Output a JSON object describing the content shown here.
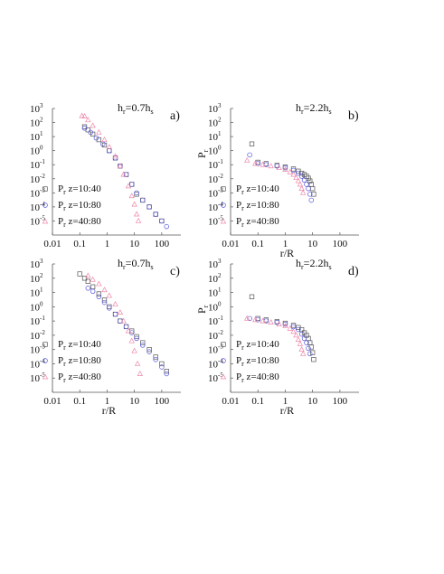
{
  "figure": {
    "panels": [
      {
        "id": "a",
        "title": "h_r=0.7h_s",
        "title_main": "h",
        "title_sub1": "r",
        "title_mid": "=0.7h",
        "title_sub2": "s",
        "letter": "a)",
        "ylabel_main": "",
        "ylabel_sub": "",
        "xlabel": ""
      },
      {
        "id": "b",
        "title": "h_r=2.2h_s",
        "title_main": "h",
        "title_sub1": "r",
        "title_mid": "=2.2h",
        "title_sub2": "s",
        "letter": "b)",
        "ylabel_main": "P",
        "ylabel_sub": "r",
        "xlabel": "r/R"
      },
      {
        "id": "c",
        "title": "h_r=0.7h_s",
        "title_main": "h",
        "title_sub1": "r",
        "title_mid": "=0.7h",
        "title_sub2": "s",
        "letter": "c)",
        "ylabel_main": "",
        "ylabel_sub": "",
        "xlabel": "r/R"
      },
      {
        "id": "d",
        "title": "h_r=2.2h_s",
        "title_main": "h",
        "title_sub1": "r",
        "title_mid": "=2.2h",
        "title_sub2": "s",
        "letter": "d)",
        "ylabel_main": "P",
        "ylabel_sub": "r",
        "xlabel": "r/R"
      }
    ]
  },
  "chart_data": [
    {
      "type": "scatter",
      "panel": "a",
      "title": "h_r=0.7h_s",
      "xlabel": "",
      "ylabel": "",
      "xscale": "log",
      "yscale": "log",
      "xlim": [
        0.01,
        500
      ],
      "ylim": [
        1e-06,
        1000
      ],
      "x_ticks": [
        "0.01",
        "0.1",
        "1",
        "10",
        "100"
      ],
      "y_ticks": [
        {
          "base": "10",
          "exp": "3"
        },
        {
          "base": "10",
          "exp": "2"
        },
        {
          "base": "10",
          "exp": "1"
        },
        {
          "base": "10",
          "exp": "0"
        },
        {
          "base": "10",
          "exp": "-1"
        },
        {
          "base": "10",
          "exp": "-2"
        },
        {
          "base": "10",
          "exp": "-3"
        },
        {
          "base": "10",
          "exp": "-4"
        },
        {
          "base": "10",
          "exp": "-5"
        }
      ],
      "legend_position": "lower-left",
      "series": [
        {
          "name": "P_r z=10:40",
          "label_main": "P",
          "label_sub": "r",
          "label_rest": " z=10:40",
          "marker": "square",
          "color": "#555555",
          "points": [
            [
              0.15,
              50
            ],
            [
              0.2,
              30
            ],
            [
              0.3,
              15
            ],
            [
              0.5,
              6
            ],
            [
              0.8,
              2.5
            ],
            [
              1.2,
              1.0
            ],
            [
              2,
              0.3
            ],
            [
              3,
              0.08
            ],
            [
              5,
              0.02
            ],
            [
              8,
              0.004
            ],
            [
              12,
              0.0008
            ],
            [
              20,
              0.0003
            ],
            [
              35,
              0.0001
            ],
            [
              60,
              3e-05
            ],
            [
              100,
              1e-05
            ]
          ]
        },
        {
          "name": "P_r z=10:80",
          "label_main": "P",
          "label_sub": "r",
          "label_rest": " z=10:80",
          "marker": "circle",
          "color": "#5555dd",
          "points": [
            [
              0.15,
              40
            ],
            [
              0.25,
              20
            ],
            [
              0.4,
              8
            ],
            [
              0.7,
              3
            ],
            [
              1.2,
              1.0
            ],
            [
              2,
              0.3
            ],
            [
              3,
              0.08
            ],
            [
              5,
              0.02
            ],
            [
              8,
              0.004
            ],
            [
              12,
              0.001
            ],
            [
              20,
              0.0003
            ],
            [
              35,
              0.0001
            ],
            [
              60,
              3e-05
            ],
            [
              100,
              1e-05
            ],
            [
              150,
              4e-06
            ]
          ]
        },
        {
          "name": "P_r z=40:80",
          "label_main": "P",
          "label_sub": "r",
          "label_rest": " z=40:80",
          "marker": "triangle",
          "color": "#ee88aa",
          "points": [
            [
              0.12,
              300
            ],
            [
              0.15,
              280
            ],
            [
              0.2,
              150
            ],
            [
              0.3,
              60
            ],
            [
              0.5,
              20
            ],
            [
              0.8,
              6
            ],
            [
              1.2,
              1.8
            ],
            [
              2,
              0.4
            ],
            [
              3,
              0.08
            ],
            [
              4,
              0.02
            ],
            [
              6,
              0.003
            ],
            [
              8,
              0.0006
            ],
            [
              10,
              0.00015
            ],
            [
              12,
              3e-05
            ],
            [
              14,
              1e-05
            ]
          ]
        }
      ]
    },
    {
      "type": "scatter",
      "panel": "b",
      "title": "h_r=2.2h_s",
      "xlabel": "r/R",
      "ylabel": "P_r",
      "xscale": "log",
      "yscale": "log",
      "xlim": [
        0.01,
        500
      ],
      "ylim": [
        1e-06,
        1000
      ],
      "x_ticks": [
        "0.01",
        "0.1",
        "1",
        "10",
        "100"
      ],
      "y_ticks": [
        {
          "base": "10",
          "exp": "3"
        },
        {
          "base": "10",
          "exp": "2"
        },
        {
          "base": "10",
          "exp": "1"
        },
        {
          "base": "10",
          "exp": "0"
        },
        {
          "base": "10",
          "exp": "-1"
        },
        {
          "base": "10",
          "exp": "-2"
        },
        {
          "base": "10",
          "exp": "-3"
        },
        {
          "base": "10",
          "exp": "-4"
        },
        {
          "base": "10",
          "exp": "-5"
        }
      ],
      "legend_position": "lower-left",
      "series": [
        {
          "name": "P_r z=10:40",
          "label_main": "P",
          "label_sub": "r",
          "label_rest": " z=10:40",
          "marker": "square",
          "color": "#555555",
          "points": [
            [
              0.06,
              3
            ],
            [
              0.1,
              0.15
            ],
            [
              0.2,
              0.12
            ],
            [
              0.5,
              0.09
            ],
            [
              1,
              0.07
            ],
            [
              2,
              0.05
            ],
            [
              3,
              0.035
            ],
            [
              4,
              0.025
            ],
            [
              5,
              0.02
            ],
            [
              6,
              0.015
            ],
            [
              7,
              0.011
            ],
            [
              8,
              0.007
            ],
            [
              9,
              0.004
            ],
            [
              10,
              0.002
            ],
            [
              11,
              0.0008
            ]
          ]
        },
        {
          "name": "P_r z=10:80",
          "label_main": "P",
          "label_sub": "r",
          "label_rest": " z=10:80",
          "marker": "circle",
          "color": "#5555dd",
          "points": [
            [
              0.05,
              0.5
            ],
            [
              0.1,
              0.12
            ],
            [
              0.2,
              0.1
            ],
            [
              0.5,
              0.08
            ],
            [
              1,
              0.06
            ],
            [
              2,
              0.04
            ],
            [
              3,
              0.025
            ],
            [
              4,
              0.015
            ],
            [
              5,
              0.008
            ],
            [
              6,
              0.004
            ],
            [
              7,
              0.002
            ],
            [
              8,
              0.0008
            ],
            [
              9,
              0.0003
            ]
          ]
        },
        {
          "name": "P_r z=40:80",
          "label_main": "P",
          "label_sub": "r",
          "label_rest": " z=40:80",
          "marker": "triangle",
          "color": "#ee88aa",
          "points": [
            [
              0.04,
              0.2
            ],
            [
              0.08,
              0.12
            ],
            [
              0.15,
              0.1
            ],
            [
              0.3,
              0.08
            ],
            [
              0.6,
              0.06
            ],
            [
              1,
              0.045
            ],
            [
              1.5,
              0.03
            ],
            [
              2,
              0.02
            ],
            [
              2.5,
              0.012
            ],
            [
              3,
              0.007
            ],
            [
              3.5,
              0.004
            ],
            [
              4,
              0.002
            ],
            [
              4.5,
              0.001
            ]
          ]
        }
      ]
    },
    {
      "type": "scatter",
      "panel": "c",
      "title": "h_r=0.7h_s",
      "xlabel": "r/R",
      "ylabel": "",
      "xscale": "log",
      "yscale": "log",
      "xlim": [
        0.01,
        500
      ],
      "ylim": [
        1e-06,
        1000
      ],
      "x_ticks": [
        "0.01",
        "0.1",
        "1",
        "10",
        "100"
      ],
      "y_ticks": [
        {
          "base": "10",
          "exp": "3"
        },
        {
          "base": "10",
          "exp": "2"
        },
        {
          "base": "10",
          "exp": "1"
        },
        {
          "base": "10",
          "exp": "0"
        },
        {
          "base": "10",
          "exp": "-1"
        },
        {
          "base": "10",
          "exp": "-2"
        },
        {
          "base": "10",
          "exp": "-3"
        },
        {
          "base": "10",
          "exp": "-4"
        },
        {
          "base": "10",
          "exp": "-5"
        }
      ],
      "legend_position": "lower-left",
      "series": [
        {
          "name": "P_r z=10:40",
          "label_main": "P",
          "label_sub": "r",
          "label_rest": " z=10:40",
          "marker": "square",
          "color": "#555555",
          "points": [
            [
              0.1,
              200
            ],
            [
              0.15,
              100
            ],
            [
              0.2,
              60
            ],
            [
              0.3,
              25
            ],
            [
              0.5,
              8
            ],
            [
              0.8,
              3
            ],
            [
              1.2,
              1
            ],
            [
              2,
              0.3
            ],
            [
              3,
              0.1
            ],
            [
              5,
              0.04
            ],
            [
              8,
              0.02
            ],
            [
              12,
              0.008
            ],
            [
              20,
              0.003
            ],
            [
              35,
              0.001
            ],
            [
              60,
              0.0003
            ],
            [
              100,
              0.0001
            ],
            [
              150,
              3e-05
            ]
          ]
        },
        {
          "name": "P_r z=10:80",
          "label_main": "P",
          "label_sub": "r",
          "label_rest": " z=10:80",
          "marker": "circle",
          "color": "#5555dd",
          "points": [
            [
              0.2,
              20
            ],
            [
              0.3,
              12
            ],
            [
              0.5,
              5
            ],
            [
              0.8,
              2
            ],
            [
              1.2,
              0.8
            ],
            [
              2,
              0.3
            ],
            [
              3,
              0.1
            ],
            [
              5,
              0.04
            ],
            [
              8,
              0.015
            ],
            [
              12,
              0.006
            ],
            [
              20,
              0.002
            ],
            [
              35,
              0.0007
            ],
            [
              60,
              0.0002
            ],
            [
              100,
              6e-05
            ],
            [
              150,
              2e-05
            ]
          ]
        },
        {
          "name": "P_r z=40:80",
          "label_main": "P",
          "label_sub": "r",
          "label_rest": " z=40:80",
          "marker": "triangle",
          "color": "#ee88aa",
          "points": [
            [
              0.2,
              150
            ],
            [
              0.3,
              80
            ],
            [
              0.5,
              40
            ],
            [
              0.8,
              15
            ],
            [
              1.2,
              6
            ],
            [
              2,
              1.5
            ],
            [
              3,
              0.4
            ],
            [
              4,
              0.1
            ],
            [
              6,
              0.02
            ],
            [
              8,
              0.004
            ],
            [
              10,
              0.0008
            ],
            [
              13,
              0.0001
            ],
            [
              16,
              2e-05
            ]
          ]
        }
      ]
    },
    {
      "type": "scatter",
      "panel": "d",
      "title": "h_r=2.2h_s",
      "xlabel": "r/R",
      "ylabel": "P_r",
      "xscale": "log",
      "yscale": "log",
      "xlim": [
        0.01,
        500
      ],
      "ylim": [
        1e-06,
        1000
      ],
      "x_ticks": [
        "0.01",
        "0.1",
        "1",
        "10",
        "100"
      ],
      "y_ticks": [
        {
          "base": "10",
          "exp": "3"
        },
        {
          "base": "10",
          "exp": "2"
        },
        {
          "base": "10",
          "exp": "1"
        },
        {
          "base": "10",
          "exp": "0"
        },
        {
          "base": "10",
          "exp": "-1"
        },
        {
          "base": "10",
          "exp": "-2"
        },
        {
          "base": "10",
          "exp": "-3"
        },
        {
          "base": "10",
          "exp": "-4"
        },
        {
          "base": "10",
          "exp": "-5"
        }
      ],
      "legend_position": "lower-left",
      "series": [
        {
          "name": "P_r z=10:40",
          "label_main": "P",
          "label_sub": "r",
          "label_rest": " z=10:40",
          "marker": "square",
          "color": "#555555",
          "points": [
            [
              0.06,
              5
            ],
            [
              0.1,
              0.15
            ],
            [
              0.2,
              0.12
            ],
            [
              0.5,
              0.09
            ],
            [
              1,
              0.07
            ],
            [
              2,
              0.05
            ],
            [
              3,
              0.035
            ],
            [
              4,
              0.025
            ],
            [
              5,
              0.015
            ],
            [
              6,
              0.01
            ],
            [
              7,
              0.006
            ],
            [
              8,
              0.003
            ],
            [
              9,
              0.0015
            ],
            [
              10,
              0.0006
            ],
            [
              11,
              0.0002
            ]
          ]
        },
        {
          "name": "P_r z=10:80",
          "label_main": "P",
          "label_sub": "r",
          "label_rest": " z=10:80",
          "marker": "circle",
          "color": "#5555dd",
          "points": [
            [
              0.05,
              0.15
            ],
            [
              0.1,
              0.12
            ],
            [
              0.2,
              0.1
            ],
            [
              0.5,
              0.08
            ],
            [
              1,
              0.06
            ],
            [
              2,
              0.04
            ],
            [
              3,
              0.025
            ],
            [
              4,
              0.012
            ],
            [
              5,
              0.006
            ],
            [
              6,
              0.003
            ],
            [
              7,
              0.0012
            ],
            [
              8,
              0.0005
            ]
          ]
        },
        {
          "name": "P_r z=40:80",
          "label_main": "P",
          "label_sub": "r",
          "label_rest": " z=40:80",
          "marker": "triangle",
          "color": "#ee88aa",
          "points": [
            [
              0.04,
              0.15
            ],
            [
              0.08,
              0.12
            ],
            [
              0.15,
              0.1
            ],
            [
              0.3,
              0.08
            ],
            [
              0.6,
              0.06
            ],
            [
              1,
              0.045
            ],
            [
              1.5,
              0.03
            ],
            [
              2,
              0.018
            ],
            [
              2.5,
              0.01
            ],
            [
              3,
              0.005
            ],
            [
              3.5,
              0.0025
            ],
            [
              4,
              0.001
            ],
            [
              4.5,
              0.0005
            ]
          ]
        }
      ]
    }
  ]
}
